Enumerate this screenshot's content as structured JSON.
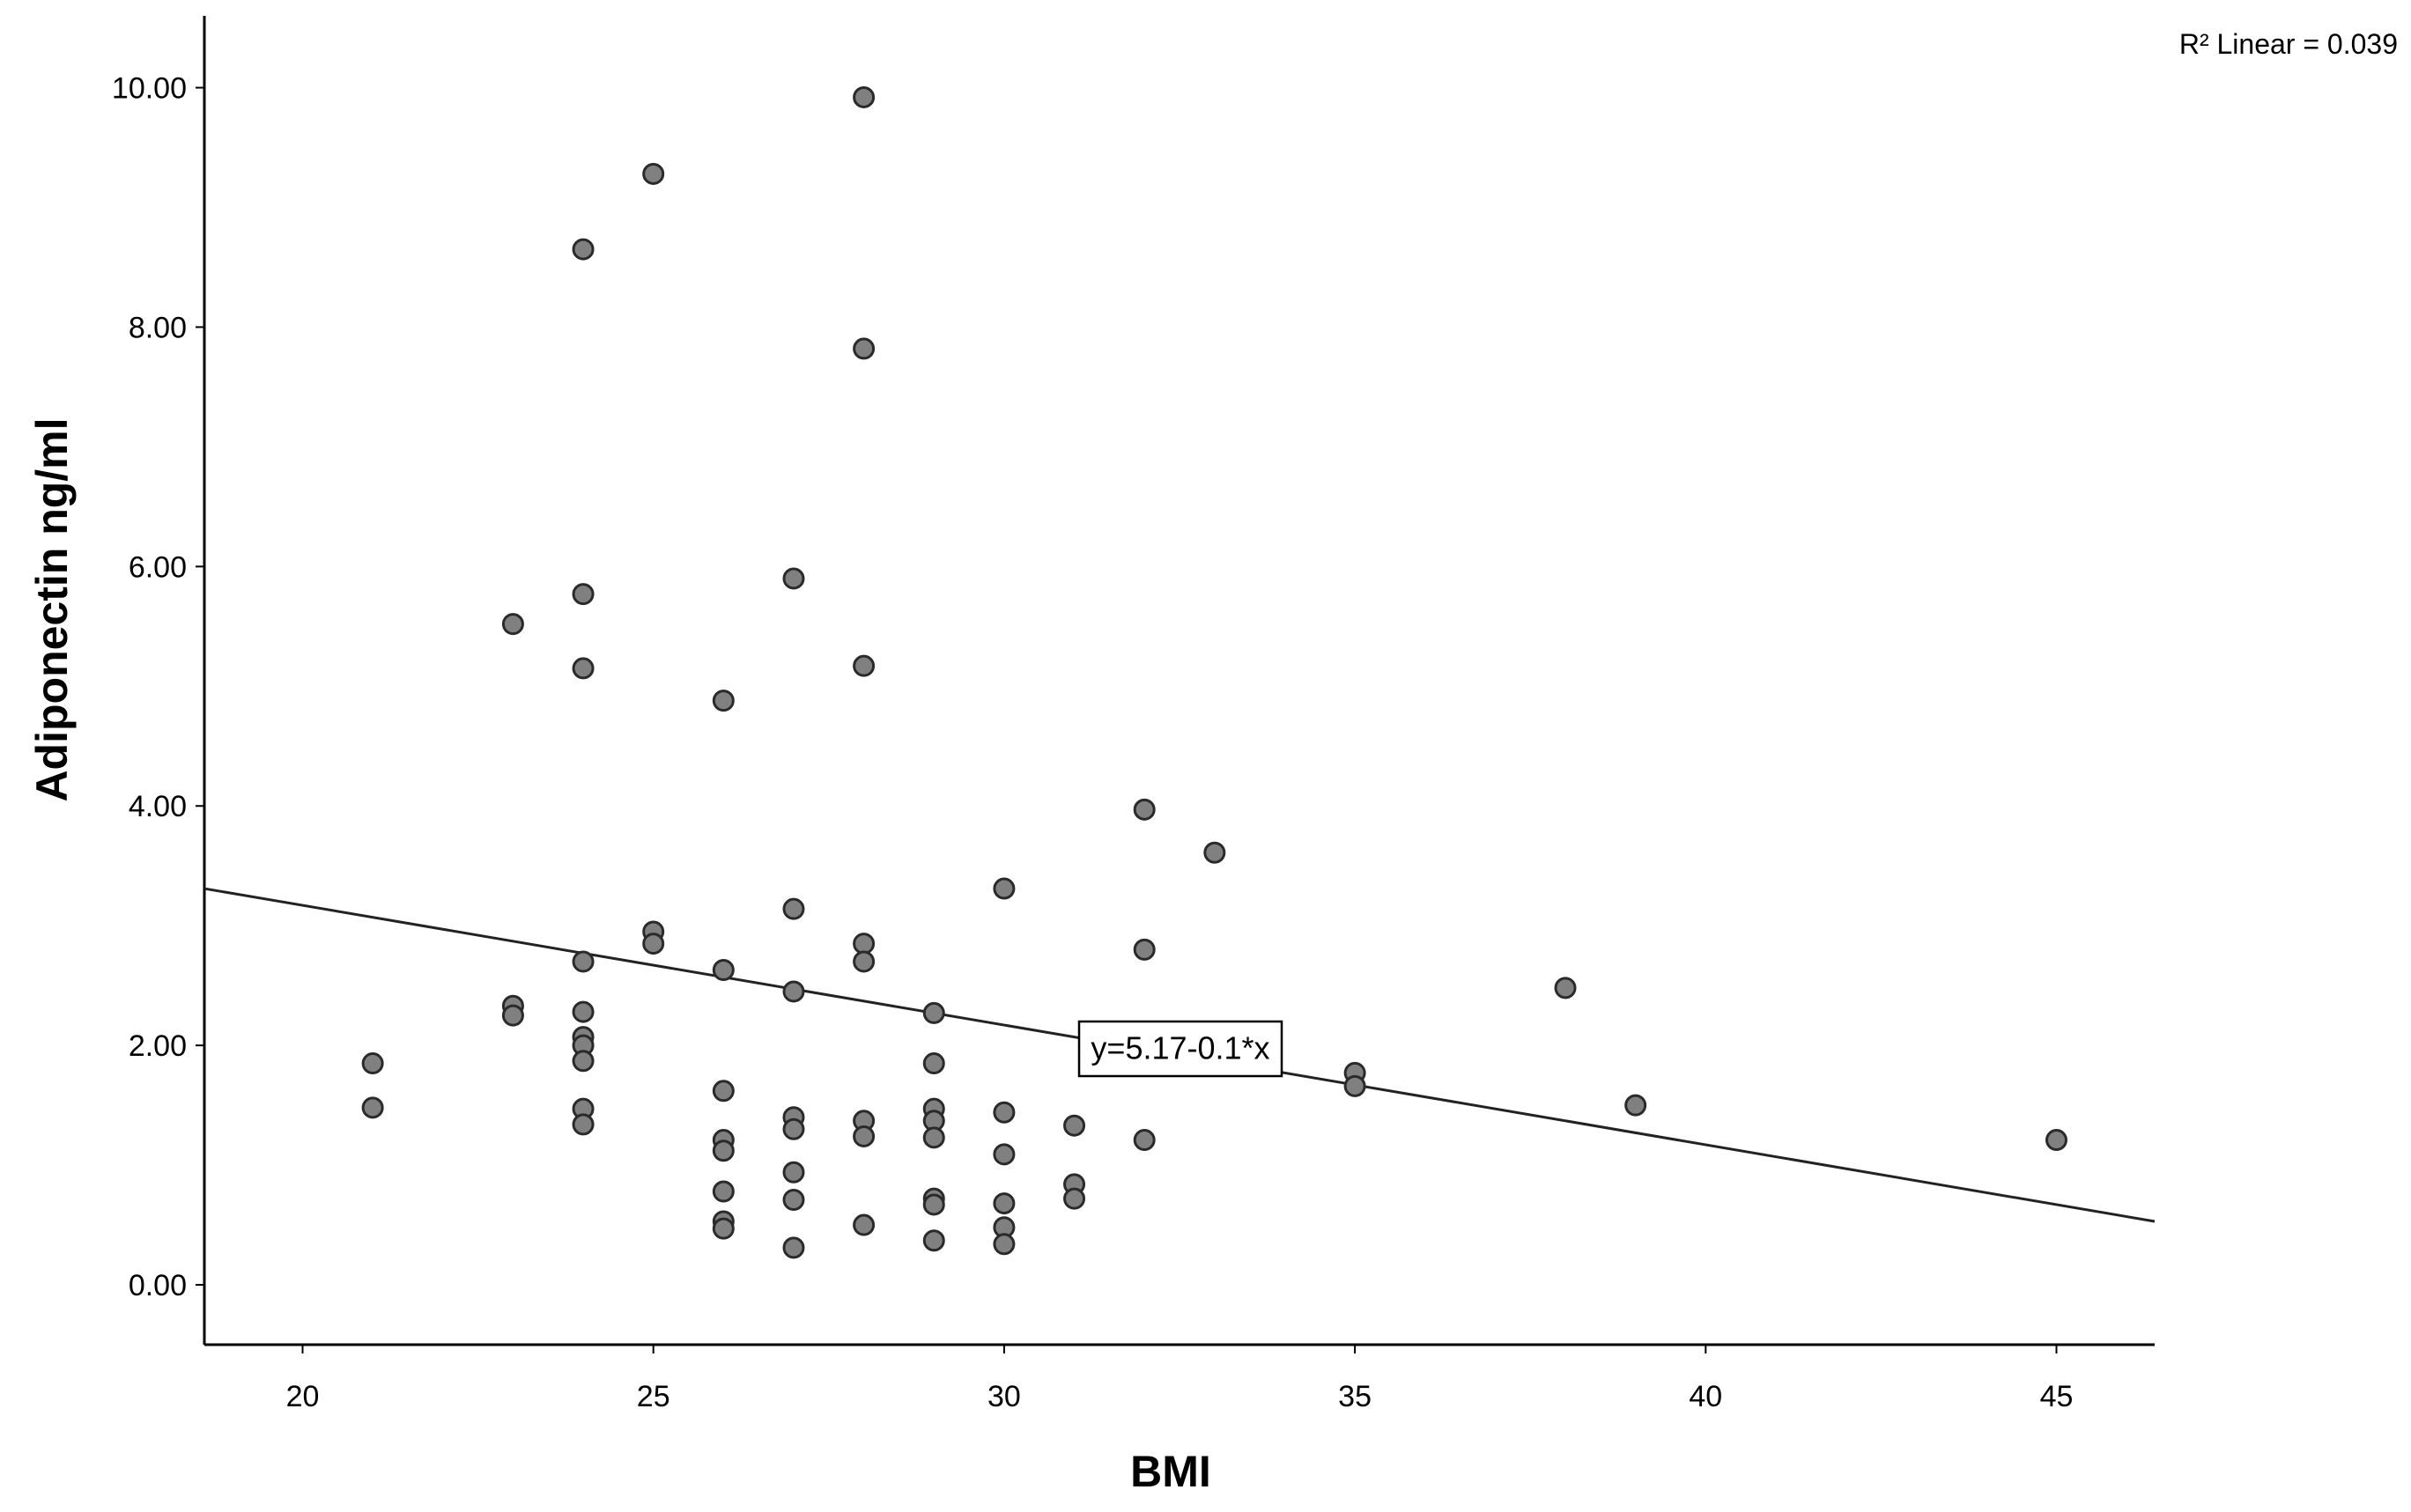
{
  "chart_data": {
    "type": "scatter",
    "xlabel": "BMI",
    "ylabel": "Adiponectin ng/ml",
    "xlim": [
      18.6,
      46.4
    ],
    "ylim": [
      -0.5,
      10.6
    ],
    "x_ticks": [
      20,
      25,
      30,
      35,
      40,
      45
    ],
    "y_ticks": [
      0,
      2,
      4,
      6,
      8,
      10
    ],
    "x_tick_labels": [
      "20",
      "25",
      "30",
      "35",
      "40",
      "45"
    ],
    "y_tick_labels": [
      "0.00",
      "2.00",
      "4.00",
      "6.00",
      "8.00",
      "10.00"
    ],
    "r2_label": "R² Linear = 0.039",
    "fit_line": {
      "intercept": 5.17,
      "slope": -0.1,
      "equation": "y=5.17-0.1*x"
    },
    "grid": false,
    "marker_color": "#808080",
    "points": [
      {
        "x": 21,
        "y": 1.85
      },
      {
        "x": 21,
        "y": 1.48
      },
      {
        "x": 23,
        "y": 5.52
      },
      {
        "x": 23,
        "y": 2.33
      },
      {
        "x": 23,
        "y": 2.25
      },
      {
        "x": 24,
        "y": 8.65
      },
      {
        "x": 24,
        "y": 5.77
      },
      {
        "x": 24,
        "y": 5.15
      },
      {
        "x": 24,
        "y": 2.7
      },
      {
        "x": 24,
        "y": 2.28
      },
      {
        "x": 24,
        "y": 2.07
      },
      {
        "x": 24,
        "y": 2.0
      },
      {
        "x": 24,
        "y": 1.87
      },
      {
        "x": 24,
        "y": 1.47
      },
      {
        "x": 24,
        "y": 1.34
      },
      {
        "x": 25,
        "y": 9.28
      },
      {
        "x": 25,
        "y": 2.95
      },
      {
        "x": 25,
        "y": 2.85
      },
      {
        "x": 26,
        "y": 4.88
      },
      {
        "x": 26,
        "y": 2.63
      },
      {
        "x": 26,
        "y": 1.62
      },
      {
        "x": 26,
        "y": 1.21
      },
      {
        "x": 26,
        "y": 1.12
      },
      {
        "x": 26,
        "y": 0.78
      },
      {
        "x": 26,
        "y": 0.53
      },
      {
        "x": 26,
        "y": 0.47
      },
      {
        "x": 27,
        "y": 5.9
      },
      {
        "x": 27,
        "y": 3.14
      },
      {
        "x": 27,
        "y": 2.45
      },
      {
        "x": 27,
        "y": 1.4
      },
      {
        "x": 27,
        "y": 1.3
      },
      {
        "x": 27,
        "y": 0.94
      },
      {
        "x": 27,
        "y": 0.71
      },
      {
        "x": 27,
        "y": 0.31
      },
      {
        "x": 28,
        "y": 9.92
      },
      {
        "x": 28,
        "y": 7.82
      },
      {
        "x": 28,
        "y": 5.17
      },
      {
        "x": 28,
        "y": 2.85
      },
      {
        "x": 28,
        "y": 2.7
      },
      {
        "x": 28,
        "y": 1.37
      },
      {
        "x": 28,
        "y": 1.24
      },
      {
        "x": 28,
        "y": 0.5
      },
      {
        "x": 29,
        "y": 2.27
      },
      {
        "x": 29,
        "y": 1.85
      },
      {
        "x": 29,
        "y": 1.47
      },
      {
        "x": 29,
        "y": 1.37
      },
      {
        "x": 29,
        "y": 1.23
      },
      {
        "x": 29,
        "y": 0.72
      },
      {
        "x": 29,
        "y": 0.67
      },
      {
        "x": 29,
        "y": 0.37
      },
      {
        "x": 30,
        "y": 3.31
      },
      {
        "x": 30,
        "y": 1.44
      },
      {
        "x": 30,
        "y": 1.09
      },
      {
        "x": 30,
        "y": 0.68
      },
      {
        "x": 30,
        "y": 0.48
      },
      {
        "x": 30,
        "y": 0.34
      },
      {
        "x": 31,
        "y": 1.33
      },
      {
        "x": 31,
        "y": 0.84
      },
      {
        "x": 31,
        "y": 0.72
      },
      {
        "x": 32,
        "y": 3.97
      },
      {
        "x": 32,
        "y": 2.8
      },
      {
        "x": 32,
        "y": 1.21
      },
      {
        "x": 33,
        "y": 3.61
      },
      {
        "x": 35,
        "y": 1.77
      },
      {
        "x": 35,
        "y": 1.66
      },
      {
        "x": 38,
        "y": 2.48
      },
      {
        "x": 39,
        "y": 1.5
      },
      {
        "x": 45,
        "y": 1.21
      }
    ]
  }
}
